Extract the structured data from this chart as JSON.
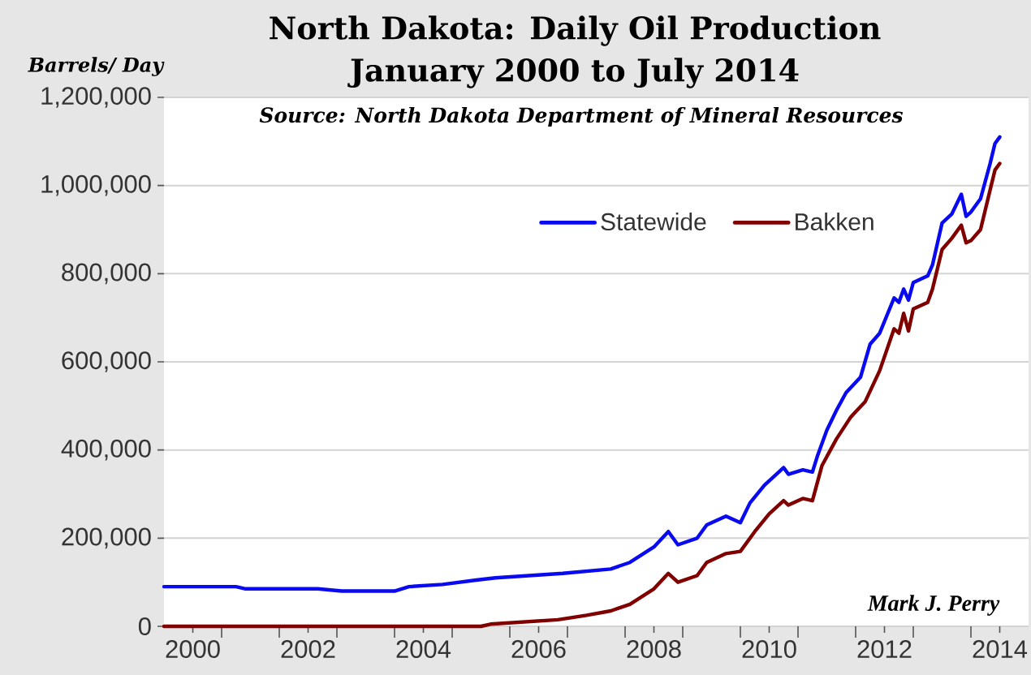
{
  "chart_data": {
    "type": "line",
    "title": "North Dakota: Daily Oil Production",
    "subtitle": "January 2000 to July 2014",
    "ylabel": "Barrels/ Day",
    "annotations": [
      "Source: North Dakota Department of Mineral Resources",
      "Mark J. Perry"
    ],
    "xlim": [
      "2000-01",
      "2015-01"
    ],
    "xticks": [
      {
        "value": "2000-07",
        "label": "2000"
      },
      {
        "value": "2002-07",
        "label": "2002"
      },
      {
        "value": "2004-07",
        "label": "2004"
      },
      {
        "value": "2006-07",
        "label": "2006"
      },
      {
        "value": "2008-07",
        "label": "2008"
      },
      {
        "value": "2010-07",
        "label": "2010"
      },
      {
        "value": "2012-07",
        "label": "2012"
      },
      {
        "value": "2014-07",
        "label": "2014"
      },
      {
        "value": "2001-01",
        "label": null
      },
      {
        "value": "2002-01",
        "label": null
      },
      {
        "value": "2003-01",
        "label": null
      },
      {
        "value": "2004-01",
        "label": null
      },
      {
        "value": "2005-01",
        "label": null
      },
      {
        "value": "2006-01",
        "label": null
      },
      {
        "value": "2007-01",
        "label": null
      },
      {
        "value": "2008-01",
        "label": null
      },
      {
        "value": "2009-01",
        "label": null
      },
      {
        "value": "2010-01",
        "label": null
      },
      {
        "value": "2011-01",
        "label": null
      },
      {
        "value": "2012-01",
        "label": null
      },
      {
        "value": "2013-01",
        "label": null
      },
      {
        "value": "2014-01",
        "label": null
      }
    ],
    "ylim": [
      0,
      1200000
    ],
    "yticks": [
      0,
      {
        "value": 200000,
        "label": "200,000"
      },
      {
        "value": 400000,
        "label": "400,000"
      },
      {
        "value": 600000,
        "label": "600,000"
      },
      {
        "value": 800000,
        "label": "800,000"
      },
      {
        "value": 1000000,
        "label": "1,000,000"
      },
      {
        "value": 1200000,
        "label": "1,200,000"
      }
    ],
    "grid": "y",
    "legend": "top",
    "series": [
      {
        "name": "Statewide",
        "color": "#0a0af0",
        "x": [
          "2000-01",
          "2001-04",
          "2001-06",
          "2002-09",
          "2003-02",
          "2004-01",
          "2004-04",
          "2004-11",
          "2005-06",
          "2005-10",
          "2006-05",
          "2006-12",
          "2007-10",
          "2008-02",
          "2008-07",
          "2008-10",
          "2008-12",
          "2009-04",
          "2009-06",
          "2009-08",
          "2009-10",
          "2010-01",
          "2010-03",
          "2010-06",
          "2010-08",
          "2010-10",
          "2010-11",
          "2011-02",
          "2011-04",
          "2011-05",
          "2011-07",
          "2011-09",
          "2011-11",
          "2012-02",
          "2012-04",
          "2012-06",
          "2012-09",
          "2012-10",
          "2012-11",
          "2012-12",
          "2013-01",
          "2013-04",
          "2013-05",
          "2013-07",
          "2013-09",
          "2013-11",
          "2013-12",
          "2014-01",
          "2014-03",
          "2014-05",
          "2014-06",
          "2014-07"
        ],
        "values": [
          90000,
          90000,
          85000,
          85000,
          80000,
          80000,
          90000,
          95000,
          105000,
          110000,
          115000,
          120000,
          130000,
          145000,
          180000,
          215000,
          185000,
          200000,
          230000,
          240000,
          250000,
          235000,
          280000,
          320000,
          340000,
          360000,
          345000,
          355000,
          350000,
          385000,
          445000,
          490000,
          530000,
          565000,
          640000,
          665000,
          745000,
          735000,
          765000,
          740000,
          780000,
          795000,
          820000,
          915000,
          935000,
          980000,
          930000,
          940000,
          970000,
          1050000,
          1095000,
          1110000
        ]
      },
      {
        "name": "Bakken",
        "color": "#800000",
        "x": [
          "2000-01",
          "2005-07",
          "2005-09",
          "2006-11",
          "2007-05",
          "2007-10",
          "2008-02",
          "2008-07",
          "2008-10",
          "2008-12",
          "2009-04",
          "2009-06",
          "2009-10",
          "2010-01",
          "2010-04",
          "2010-07",
          "2010-10",
          "2010-11",
          "2011-02",
          "2011-04",
          "2011-06",
          "2011-09",
          "2011-12",
          "2012-03",
          "2012-06",
          "2012-09",
          "2012-10",
          "2012-11",
          "2012-12",
          "2013-01",
          "2013-04",
          "2013-05",
          "2013-07",
          "2013-09",
          "2013-11",
          "2013-12",
          "2014-01",
          "2014-03",
          "2014-05",
          "2014-06",
          "2014-07"
        ],
        "values": [
          0,
          0,
          5000,
          15000,
          25000,
          35000,
          50000,
          85000,
          120000,
          100000,
          115000,
          145000,
          165000,
          170000,
          215000,
          255000,
          285000,
          275000,
          290000,
          285000,
          365000,
          425000,
          475000,
          510000,
          580000,
          675000,
          665000,
          710000,
          670000,
          720000,
          735000,
          765000,
          855000,
          880000,
          910000,
          870000,
          875000,
          900000,
          990000,
          1035000,
          1050000
        ]
      }
    ]
  }
}
